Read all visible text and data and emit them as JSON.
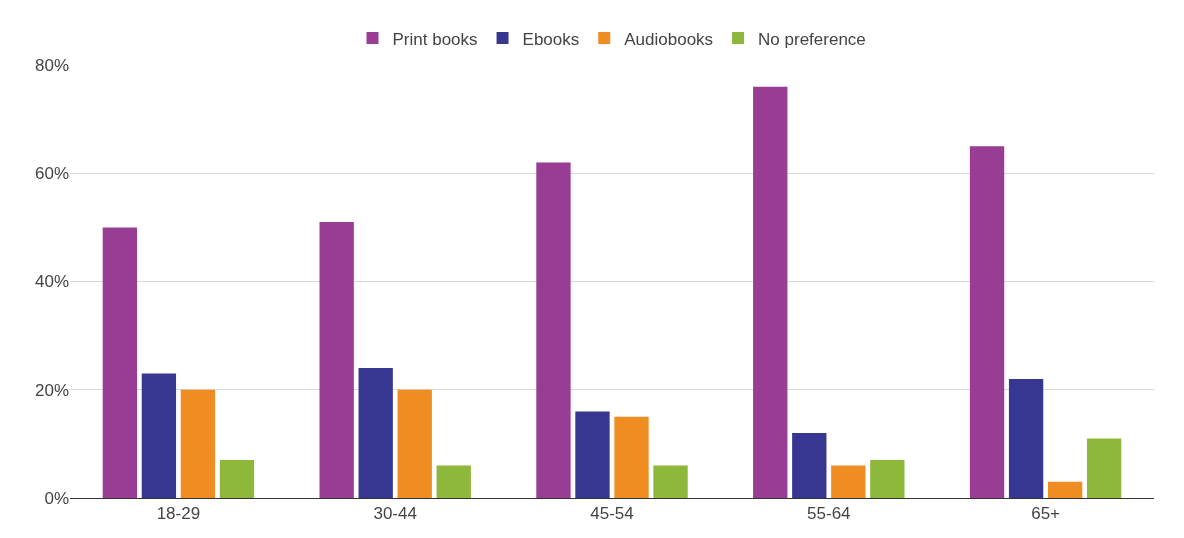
{
  "chart_data": {
    "type": "bar",
    "categories": [
      "18-29",
      "30-44",
      "45-54",
      "55-64",
      "65+"
    ],
    "series": [
      {
        "name": "Print books",
        "color": "#993d94",
        "values": [
          50,
          51,
          62,
          76,
          65
        ]
      },
      {
        "name": "Ebooks",
        "color": "#373792",
        "values": [
          23,
          24,
          16,
          12,
          22
        ]
      },
      {
        "name": "Audiobooks",
        "color": "#ef8d22",
        "values": [
          20,
          20,
          15,
          6,
          3
        ]
      },
      {
        "name": "No preference",
        "color": "#8db83b",
        "values": [
          7,
          6,
          6,
          7,
          11
        ]
      }
    ],
    "ylim": [
      0,
      80
    ],
    "yticks": [
      {
        "value": 0,
        "label": "0%"
      },
      {
        "value": 20,
        "label": "20%"
      },
      {
        "value": 40,
        "label": "40%"
      },
      {
        "value": 60,
        "label": "60%"
      },
      {
        "value": 80,
        "label": "80%"
      }
    ],
    "grid": "y",
    "legend": "top"
  }
}
